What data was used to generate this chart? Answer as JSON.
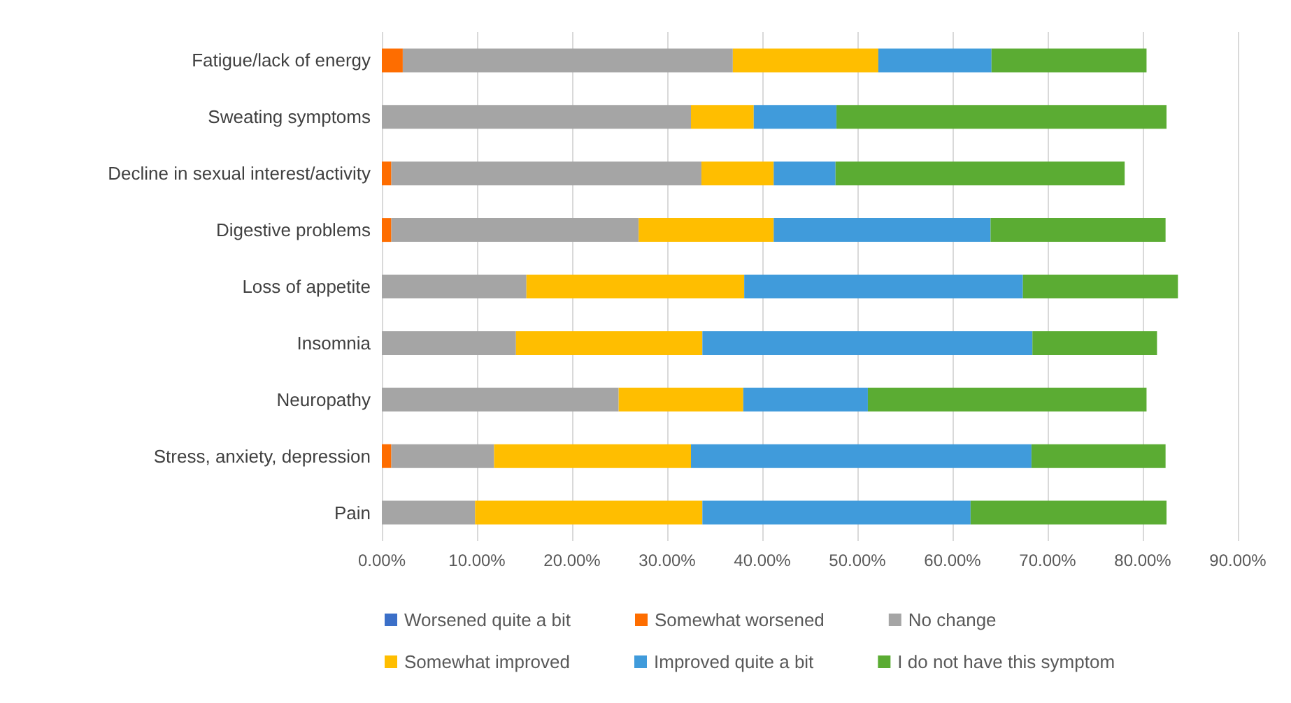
{
  "chart_data": {
    "type": "bar",
    "orientation": "horizontal",
    "stacked": true,
    "categories": [
      "Fatigue/lack of energy",
      "Sweating symptoms",
      "Decline in sexual interest/activity",
      "Digestive problems",
      "Loss of appetite",
      "Insomnia",
      "Neuropathy",
      "Stress, anxiety, depression",
      "Pain"
    ],
    "series": [
      {
        "name": "Worsened quite a bit",
        "color": "#3b6fc8",
        "values": [
          0,
          0,
          0,
          0,
          0,
          0,
          0,
          0,
          0
        ]
      },
      {
        "name": "Somewhat worsened",
        "color": "#fe6d00",
        "values": [
          2.2,
          0,
          1.0,
          1.0,
          0,
          0,
          0,
          1.0,
          0
        ]
      },
      {
        "name": "No change",
        "color": "#a5a5a5",
        "values": [
          34.7,
          32.5,
          32.6,
          26.0,
          15.2,
          14.1,
          24.9,
          10.8,
          9.8
        ]
      },
      {
        "name": "Somewhat improved",
        "color": "#ffbe00",
        "values": [
          15.3,
          6.6,
          7.6,
          14.2,
          22.9,
          19.6,
          13.1,
          20.7,
          23.9
        ]
      },
      {
        "name": "Improved quite a bit",
        "color": "#409bdb",
        "values": [
          11.9,
          8.7,
          6.5,
          22.8,
          29.3,
          34.7,
          13.1,
          35.8,
          28.2
        ]
      },
      {
        "name": "I do not have this symptom",
        "color": "#5bac33",
        "values": [
          16.3,
          34.7,
          30.4,
          18.4,
          16.3,
          13.1,
          29.3,
          14.1,
          20.6
        ]
      }
    ],
    "xlim": [
      0,
      90
    ],
    "xticks": [
      {
        "value": 0,
        "label": "0.00%"
      },
      {
        "value": 10,
        "label": "10.00%"
      },
      {
        "value": 20,
        "label": "20.00%"
      },
      {
        "value": 30,
        "label": "30.00%"
      },
      {
        "value": 40,
        "label": "40.00%"
      },
      {
        "value": 50,
        "label": "50.00%"
      },
      {
        "value": 60,
        "label": "60.00%"
      },
      {
        "value": 70,
        "label": "70.00%"
      },
      {
        "value": 80,
        "label": "80.00%"
      },
      {
        "value": 90,
        "label": "90.00%"
      }
    ],
    "grid": "x",
    "legend": "bottom"
  }
}
